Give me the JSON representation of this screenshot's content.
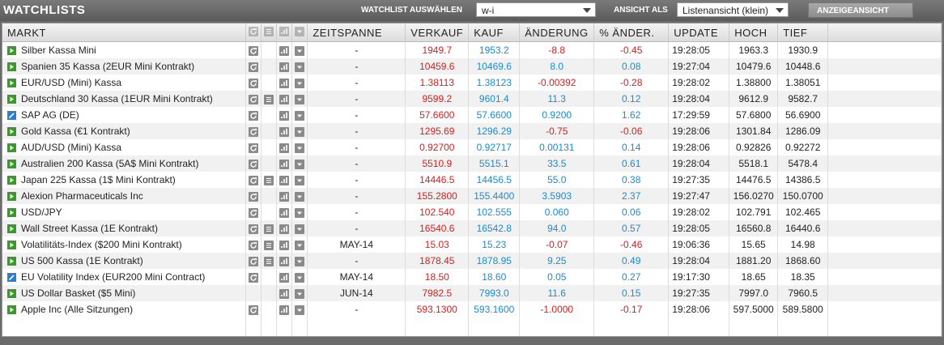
{
  "header": {
    "title": "WATCHLISTS",
    "select_label": "WATCHLIST AUSWÄHLEN",
    "select_value": "w-i",
    "view_label": "ANSICHT ALS",
    "view_value": "Listenansicht (klein)",
    "button": "ANZEIGEANSICHT"
  },
  "table": {
    "columns": [
      "MARKT",
      "ZEITSPANNE",
      "VERKAUF",
      "KAUF",
      "ÄNDERUNG",
      "% ÄNDER.",
      "UPDATE",
      "HOCH",
      "TIEF"
    ],
    "rows": [
      [
        "Silber Kassa Mini",
        "-",
        "1949.7",
        "1953.2",
        "-8.8",
        "-0.45",
        "19:28:05",
        "1963.3",
        "1930.9"
      ],
      [
        "Spanien 35 Kassa (2EUR Mini Kontrakt)",
        "-",
        "10459.6",
        "10469.6",
        "8.0",
        "0.08",
        "19:27:04",
        "10479.6",
        "10448.6"
      ],
      [
        "EUR/USD (Mini) Kassa",
        "-",
        "1.38113",
        "1.38123",
        "-0.00392",
        "-0.28",
        "19:28:02",
        "1.38800",
        "1.38051"
      ],
      [
        "Deutschland 30 Kassa (1EUR Mini Kontrakt)",
        "-",
        "9599.2",
        "9601.4",
        "11.3",
        "0.12",
        "19:28:04",
        "9612.9",
        "9582.7"
      ],
      [
        "SAP AG (DE)",
        "-",
        "57.6600",
        "57.6600",
        "0.9200",
        "1.62",
        "17:29:59",
        "57.6800",
        "56.6900"
      ],
      [
        "Gold Kassa (€1 Kontrakt)",
        "-",
        "1295.69",
        "1296.29",
        "-0.75",
        "-0.06",
        "19:28:06",
        "1301.84",
        "1286.09"
      ],
      [
        "AUD/USD (Mini) Kassa",
        "-",
        "0.92700",
        "0.92717",
        "0.00131",
        "0.14",
        "19:28:06",
        "0.92826",
        "0.92272"
      ],
      [
        "Australien 200 Kassa (5A$ Mini Kontrakt)",
        "-",
        "5510.9",
        "5515.1",
        "33.5",
        "0.61",
        "19:28:04",
        "5518.1",
        "5478.4"
      ],
      [
        "Japan 225 Kassa (1$ Mini Kontrakt)",
        "-",
        "14446.5",
        "14456.5",
        "55.0",
        "0.38",
        "19:27:35",
        "14476.5",
        "14386.5"
      ],
      [
        "Alexion Pharmaceuticals Inc",
        "-",
        "155.2800",
        "155.4400",
        "3.5903",
        "2.37",
        "19:27:47",
        "156.0270",
        "150.0700"
      ],
      [
        "USD/JPY",
        "-",
        "102.540",
        "102.555",
        "0.060",
        "0.06",
        "19:28:02",
        "102.791",
        "102.465"
      ],
      [
        "Wall Street Kassa (1E Kontrakt)",
        "-",
        "16540.6",
        "16542.8",
        "94.0",
        "0.57",
        "19:28:05",
        "16560.8",
        "16440.6"
      ],
      [
        "Volatilitäts-Index ($200 Mini Kontrakt)",
        "MAY-14",
        "15.03",
        "15.23",
        "-0.07",
        "-0.46",
        "19:06:36",
        "15.65",
        "14.98"
      ],
      [
        "US 500 Kassa (1E Kontrakt)",
        "-",
        "1878.45",
        "1878.95",
        "9.25",
        "0.49",
        "19:28:04",
        "1881.20",
        "1868.60"
      ],
      [
        "EU Volatility Index (EUR200 Mini Contract)",
        "MAY-14",
        "18.50",
        "18.60",
        "0.05",
        "0.27",
        "19:17:30",
        "18.65",
        "18.35"
      ],
      [
        "US Dollar Basket ($5 Mini)",
        "JUN-14",
        "7982.5",
        "7993.0",
        "11.6",
        "0.15",
        "19:27:35",
        "7997.0",
        "7960.5"
      ],
      [
        "Apple Inc (Alle Sitzungen)",
        "-",
        "593.1300",
        "593.1600",
        "-1.0000",
        "-0.17",
        "19:28:06",
        "597.5000",
        "589.5800"
      ]
    ]
  }
}
